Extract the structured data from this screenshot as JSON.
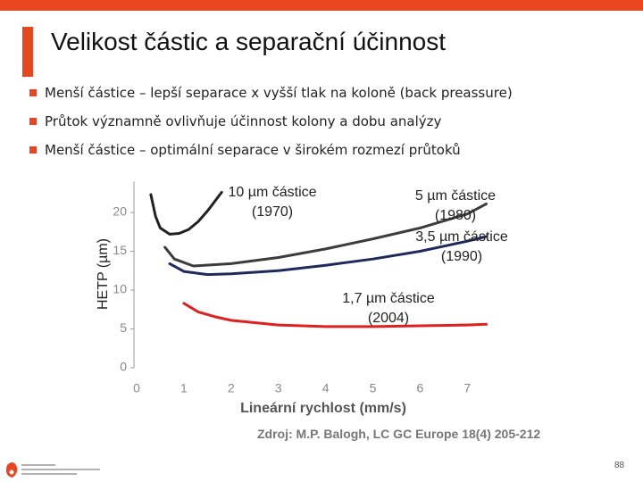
{
  "header": {
    "title": "Velikost částic a separační účinnost"
  },
  "bullets": [
    "Menší částice – lepší separace x vyšší tlak na koloně (back preassure)",
    "Průtok významně ovlivňuje účinnost kolony a dobu analýzy",
    "Menší částice – optimální separace v širokém rozmezí průtoků"
  ],
  "chart_data": {
    "type": "line",
    "x_label": "Lineární rychlost (mm/s)",
    "y_label": "HETP (µm)",
    "xlim": [
      0,
      7.5
    ],
    "ylim": [
      0,
      24
    ],
    "xticks": [
      0,
      1,
      2,
      3,
      4,
      5,
      6,
      7
    ],
    "yticks": [
      0,
      5,
      10,
      15,
      20
    ],
    "grid": false,
    "series": [
      {
        "name": "10 µm částice",
        "annotation": "(1970)",
        "color": "#222222",
        "x": [
          0.3,
          0.4,
          0.5,
          0.7,
          0.9,
          1.1,
          1.3,
          1.5,
          1.8
        ],
        "values": [
          22.3,
          19.5,
          18,
          17.2,
          17.3,
          17.8,
          18.8,
          20.2,
          22.6
        ]
      },
      {
        "name": "5 µm částice",
        "annotation": "(1980)",
        "color": "#3c3c3c",
        "x": [
          0.6,
          0.8,
          1.2,
          2,
          3,
          4,
          5,
          6,
          7,
          7.4
        ],
        "values": [
          15.5,
          14,
          13.1,
          13.4,
          14.2,
          15.3,
          16.6,
          18,
          19.8,
          21.1
        ]
      },
      {
        "name": "3,5 µm částice",
        "annotation": "(1990)",
        "color": "#1f2a5c",
        "x": [
          0.7,
          1,
          1.5,
          2,
          3,
          4,
          5,
          6,
          7,
          7.4
        ],
        "values": [
          13.4,
          12.4,
          12,
          12.1,
          12.5,
          13.2,
          14,
          15,
          16.3,
          16.9
        ]
      },
      {
        "name": "1,7 µm částice",
        "annotation": "(2004)",
        "color": "#e02020",
        "x": [
          1,
          1.3,
          1.7,
          2,
          3,
          4,
          5,
          6,
          7,
          7.4
        ],
        "values": [
          8.3,
          7.2,
          6.5,
          6.1,
          5.5,
          5.3,
          5.3,
          5.4,
          5.5,
          5.6
        ]
      }
    ]
  },
  "source": "Zdroj: M.P. Balogh, LC GC Europe 18(4) 205-212",
  "page_number": "88"
}
